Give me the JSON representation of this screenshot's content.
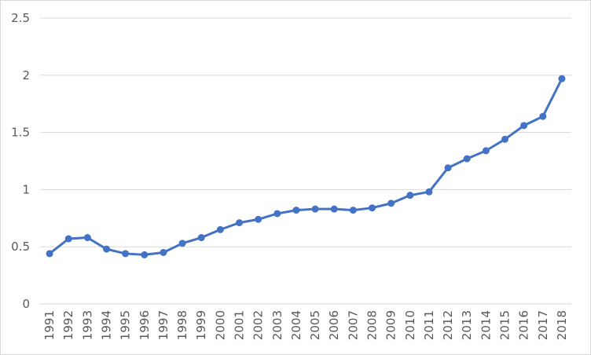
{
  "chart_data": {
    "type": "line",
    "title": "",
    "xlabel": "",
    "ylabel": "",
    "ylim": [
      0,
      2.5
    ],
    "y_ticks": [
      "0",
      "0.5",
      "1",
      "1.5",
      "2",
      "2.5"
    ],
    "grid": true,
    "legend": "none",
    "categories": [
      "1991",
      "1992",
      "1993",
      "1994",
      "1995",
      "1996",
      "1997",
      "1998",
      "1999",
      "2000",
      "2001",
      "2002",
      "2003",
      "2004",
      "2005",
      "2006",
      "2007",
      "2008",
      "2009",
      "2010",
      "2011",
      "2012",
      "2013",
      "2014",
      "2015",
      "2016",
      "2017",
      "2018"
    ],
    "series": [
      {
        "color": "#4472c4",
        "values": [
          0.44,
          0.57,
          0.58,
          0.48,
          0.44,
          0.43,
          0.45,
          0.53,
          0.58,
          0.65,
          0.71,
          0.74,
          0.79,
          0.82,
          0.83,
          0.83,
          0.82,
          0.84,
          0.88,
          0.95,
          0.98,
          1.19,
          1.27,
          1.34,
          1.44,
          1.56,
          1.64,
          1.97
        ]
      }
    ]
  }
}
